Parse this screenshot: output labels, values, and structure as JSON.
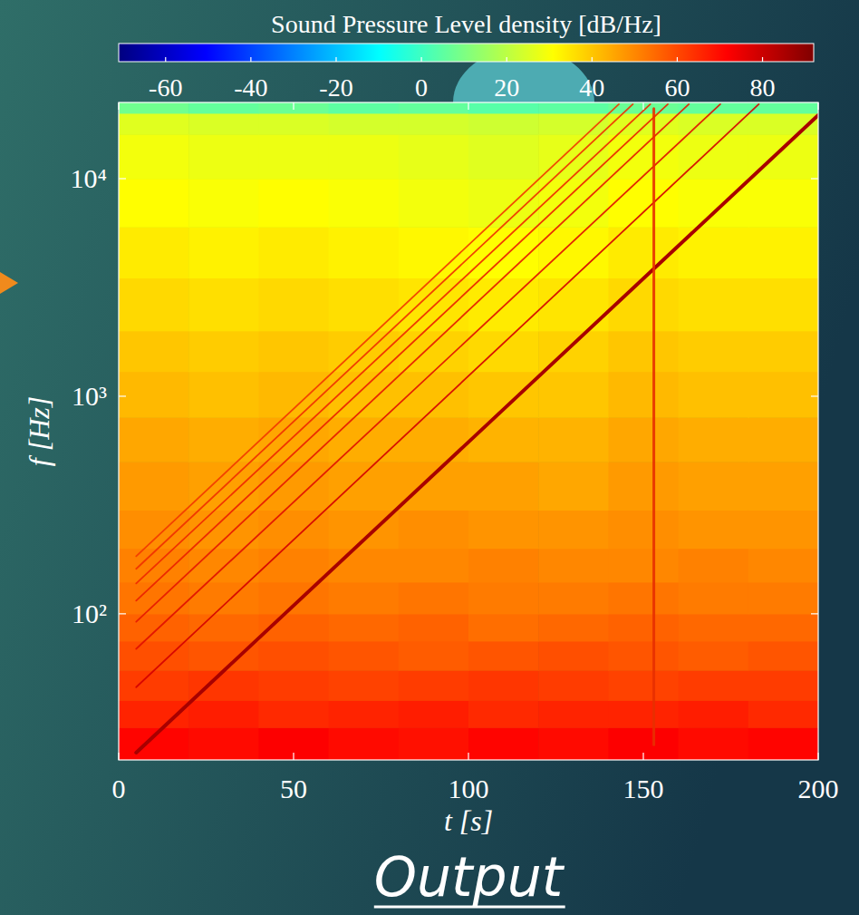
{
  "chart_data": {
    "type": "heatmap",
    "log": "y",
    "x_label": "t [s]",
    "y_label": "f [Hz]",
    "caption": "Output",
    "xlim": [
      0,
      200
    ],
    "ylim": [
      21.3,
      22400
    ],
    "xticks": [
      0,
      50,
      100,
      150,
      200
    ],
    "yticks": [
      {
        "value": 100,
        "label": "10²"
      },
      {
        "value": 1000,
        "label": "10³"
      },
      {
        "value": 10000,
        "label": "10⁴"
      }
    ],
    "heatmap": {
      "x_edges": [
        0,
        20,
        40,
        60,
        80,
        100,
        120,
        140,
        160,
        180,
        200
      ],
      "y_edges": [
        21.3,
        30,
        40,
        55,
        75,
        100,
        140,
        200,
        300,
        500,
        800,
        1300,
        2000,
        3500,
        6000,
        10000,
        16000,
        20000,
        22400
      ],
      "values": [
        [
          71,
          70,
          72,
          70,
          69,
          71,
          70,
          72,
          70,
          71
        ],
        [
          66,
          67,
          65,
          66,
          67,
          65,
          66,
          66,
          67,
          65
        ],
        [
          62,
          63,
          62,
          61,
          62,
          63,
          62,
          61,
          62,
          62
        ],
        [
          59,
          58,
          59,
          58,
          57,
          58,
          59,
          58,
          57,
          58
        ],
        [
          56,
          55,
          56,
          55,
          56,
          54,
          55,
          56,
          55,
          55
        ],
        [
          53,
          52,
          53,
          52,
          53,
          52,
          52,
          53,
          52,
          52
        ],
        [
          51,
          50,
          51,
          50,
          50,
          51,
          50,
          50,
          51,
          50
        ],
        [
          49,
          48,
          49,
          48,
          49,
          48,
          48,
          49,
          48,
          48
        ],
        [
          47,
          46,
          47,
          46,
          46,
          46,
          45,
          47,
          46,
          46
        ],
        [
          45,
          44,
          45,
          44,
          44,
          43,
          43,
          45,
          44,
          44
        ],
        [
          42,
          41,
          42,
          41,
          41,
          40,
          40,
          42,
          41,
          41
        ],
        [
          40,
          39,
          40,
          39,
          38,
          37,
          38,
          40,
          39,
          39
        ],
        [
          37,
          36,
          37,
          36,
          35,
          34,
          35,
          37,
          36,
          36
        ],
        [
          34,
          33,
          34,
          33,
          32,
          31,
          32,
          34,
          33,
          33
        ],
        [
          31,
          30,
          31,
          30,
          29,
          28,
          29,
          31,
          30,
          30
        ],
        [
          29,
          28,
          28,
          28,
          27,
          26,
          27,
          29,
          28,
          28
        ],
        [
          26,
          25,
          25,
          24,
          24,
          23,
          24,
          26,
          25,
          25
        ],
        [
          8,
          6,
          7,
          5,
          6,
          4,
          5,
          7,
          6,
          6
        ]
      ]
    },
    "colorbar": {
      "label": "Sound Pressure Level density [dB/Hz]",
      "range": [
        -71,
        92
      ],
      "ticks": [
        -60,
        -40,
        -20,
        0,
        20,
        40,
        60,
        80
      ]
    },
    "series": [
      {
        "type": "line",
        "color": "#a80000",
        "x": [
          5,
          200
        ],
        "values": [
          23,
          19600
        ]
      },
      {
        "type": "line",
        "color": "#d40000",
        "x": [
          5,
          183
        ],
        "values": [
          46,
          22000
        ]
      },
      {
        "type": "line",
        "color": "#e01000",
        "x": [
          5,
          172
        ],
        "values": [
          69,
          22000
        ]
      },
      {
        "type": "line",
        "color": "#e61800",
        "x": [
          5,
          163
        ],
        "values": [
          92,
          22000
        ]
      },
      {
        "type": "line",
        "color": "#ea2000",
        "x": [
          5,
          157
        ],
        "values": [
          115,
          22000
        ]
      },
      {
        "type": "line",
        "color": "#ee2800",
        "x": [
          5,
          152
        ],
        "values": [
          138,
          22000
        ]
      },
      {
        "type": "line",
        "color": "#f03000",
        "x": [
          5,
          147
        ],
        "values": [
          161,
          22000
        ]
      },
      {
        "type": "line",
        "color": "#f23800",
        "x": [
          5,
          143
        ],
        "values": [
          184,
          22000
        ]
      },
      {
        "type": "line",
        "color": "#e83000",
        "x": [
          153,
          153
        ],
        "values": [
          25,
          21000
        ]
      }
    ]
  }
}
